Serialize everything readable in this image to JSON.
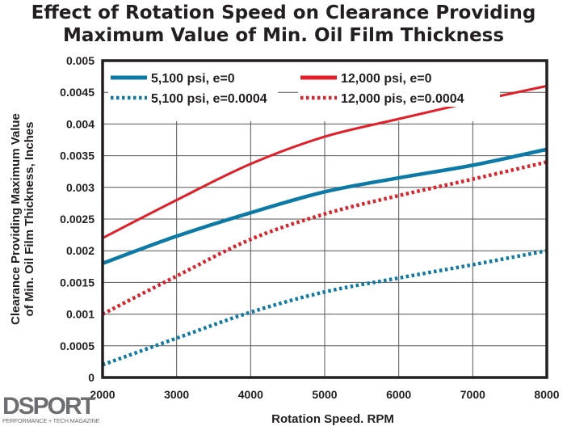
{
  "chart_data": {
    "type": "line",
    "title": "Effect of Rotation Speed on Clearance Providing Maximum Value of Min. Oil Film Thickness",
    "title_lines": [
      "Effect of Rotation Speed on Clearance Providing",
      "Maximum Value of Min. Oil Film Thickness"
    ],
    "xlabel": "Rotation Speed. RPM",
    "ylabel_lines": [
      "Clearance Providing Maximum Value",
      "of Min. Oil Film Thickness, Inches"
    ],
    "xlim": [
      2000,
      8000
    ],
    "ylim": [
      0,
      0.005
    ],
    "x_ticks": [
      "2000",
      "3000",
      "4000",
      "5000",
      "6000",
      "7000",
      "8000"
    ],
    "y_ticks": [
      "0",
      "0.0005",
      "0.001",
      "0.0015",
      "0.002",
      "0.0025",
      "0.003",
      "0.0035",
      "0.004",
      "0.0045",
      "0.005"
    ],
    "grid": true,
    "legend_placement": "top-left inside",
    "x": [
      2000,
      3000,
      4000,
      5000,
      6000,
      7000,
      8000
    ],
    "series": [
      {
        "name": "5,100 psi, e=0",
        "color": "#0b7aa6",
        "style": "solid",
        "values": [
          0.0018,
          0.00223,
          0.0026,
          0.00293,
          0.00315,
          0.00335,
          0.0036
        ]
      },
      {
        "name": "12,000 psi, e=0",
        "color": "#e31e26",
        "style": "solid",
        "values": [
          0.0022,
          0.0028,
          0.00337,
          0.0038,
          0.00408,
          0.00435,
          0.0046
        ]
      },
      {
        "name": "5,100 psi, e=0.0004",
        "color": "#0b7aa6",
        "style": "dotted",
        "values": [
          0.0002,
          0.00062,
          0.00103,
          0.00135,
          0.00157,
          0.00178,
          0.002
        ]
      },
      {
        "name": "12,000 pis, e=0.0004",
        "color": "#e31e26",
        "style": "dotted",
        "values": [
          0.001,
          0.0016,
          0.00218,
          0.00258,
          0.00287,
          0.00313,
          0.0034
        ]
      }
    ]
  },
  "logo": {
    "name": "DSPORT",
    "tagline": "PERFORMANCE + TECH MAGAZINE"
  }
}
